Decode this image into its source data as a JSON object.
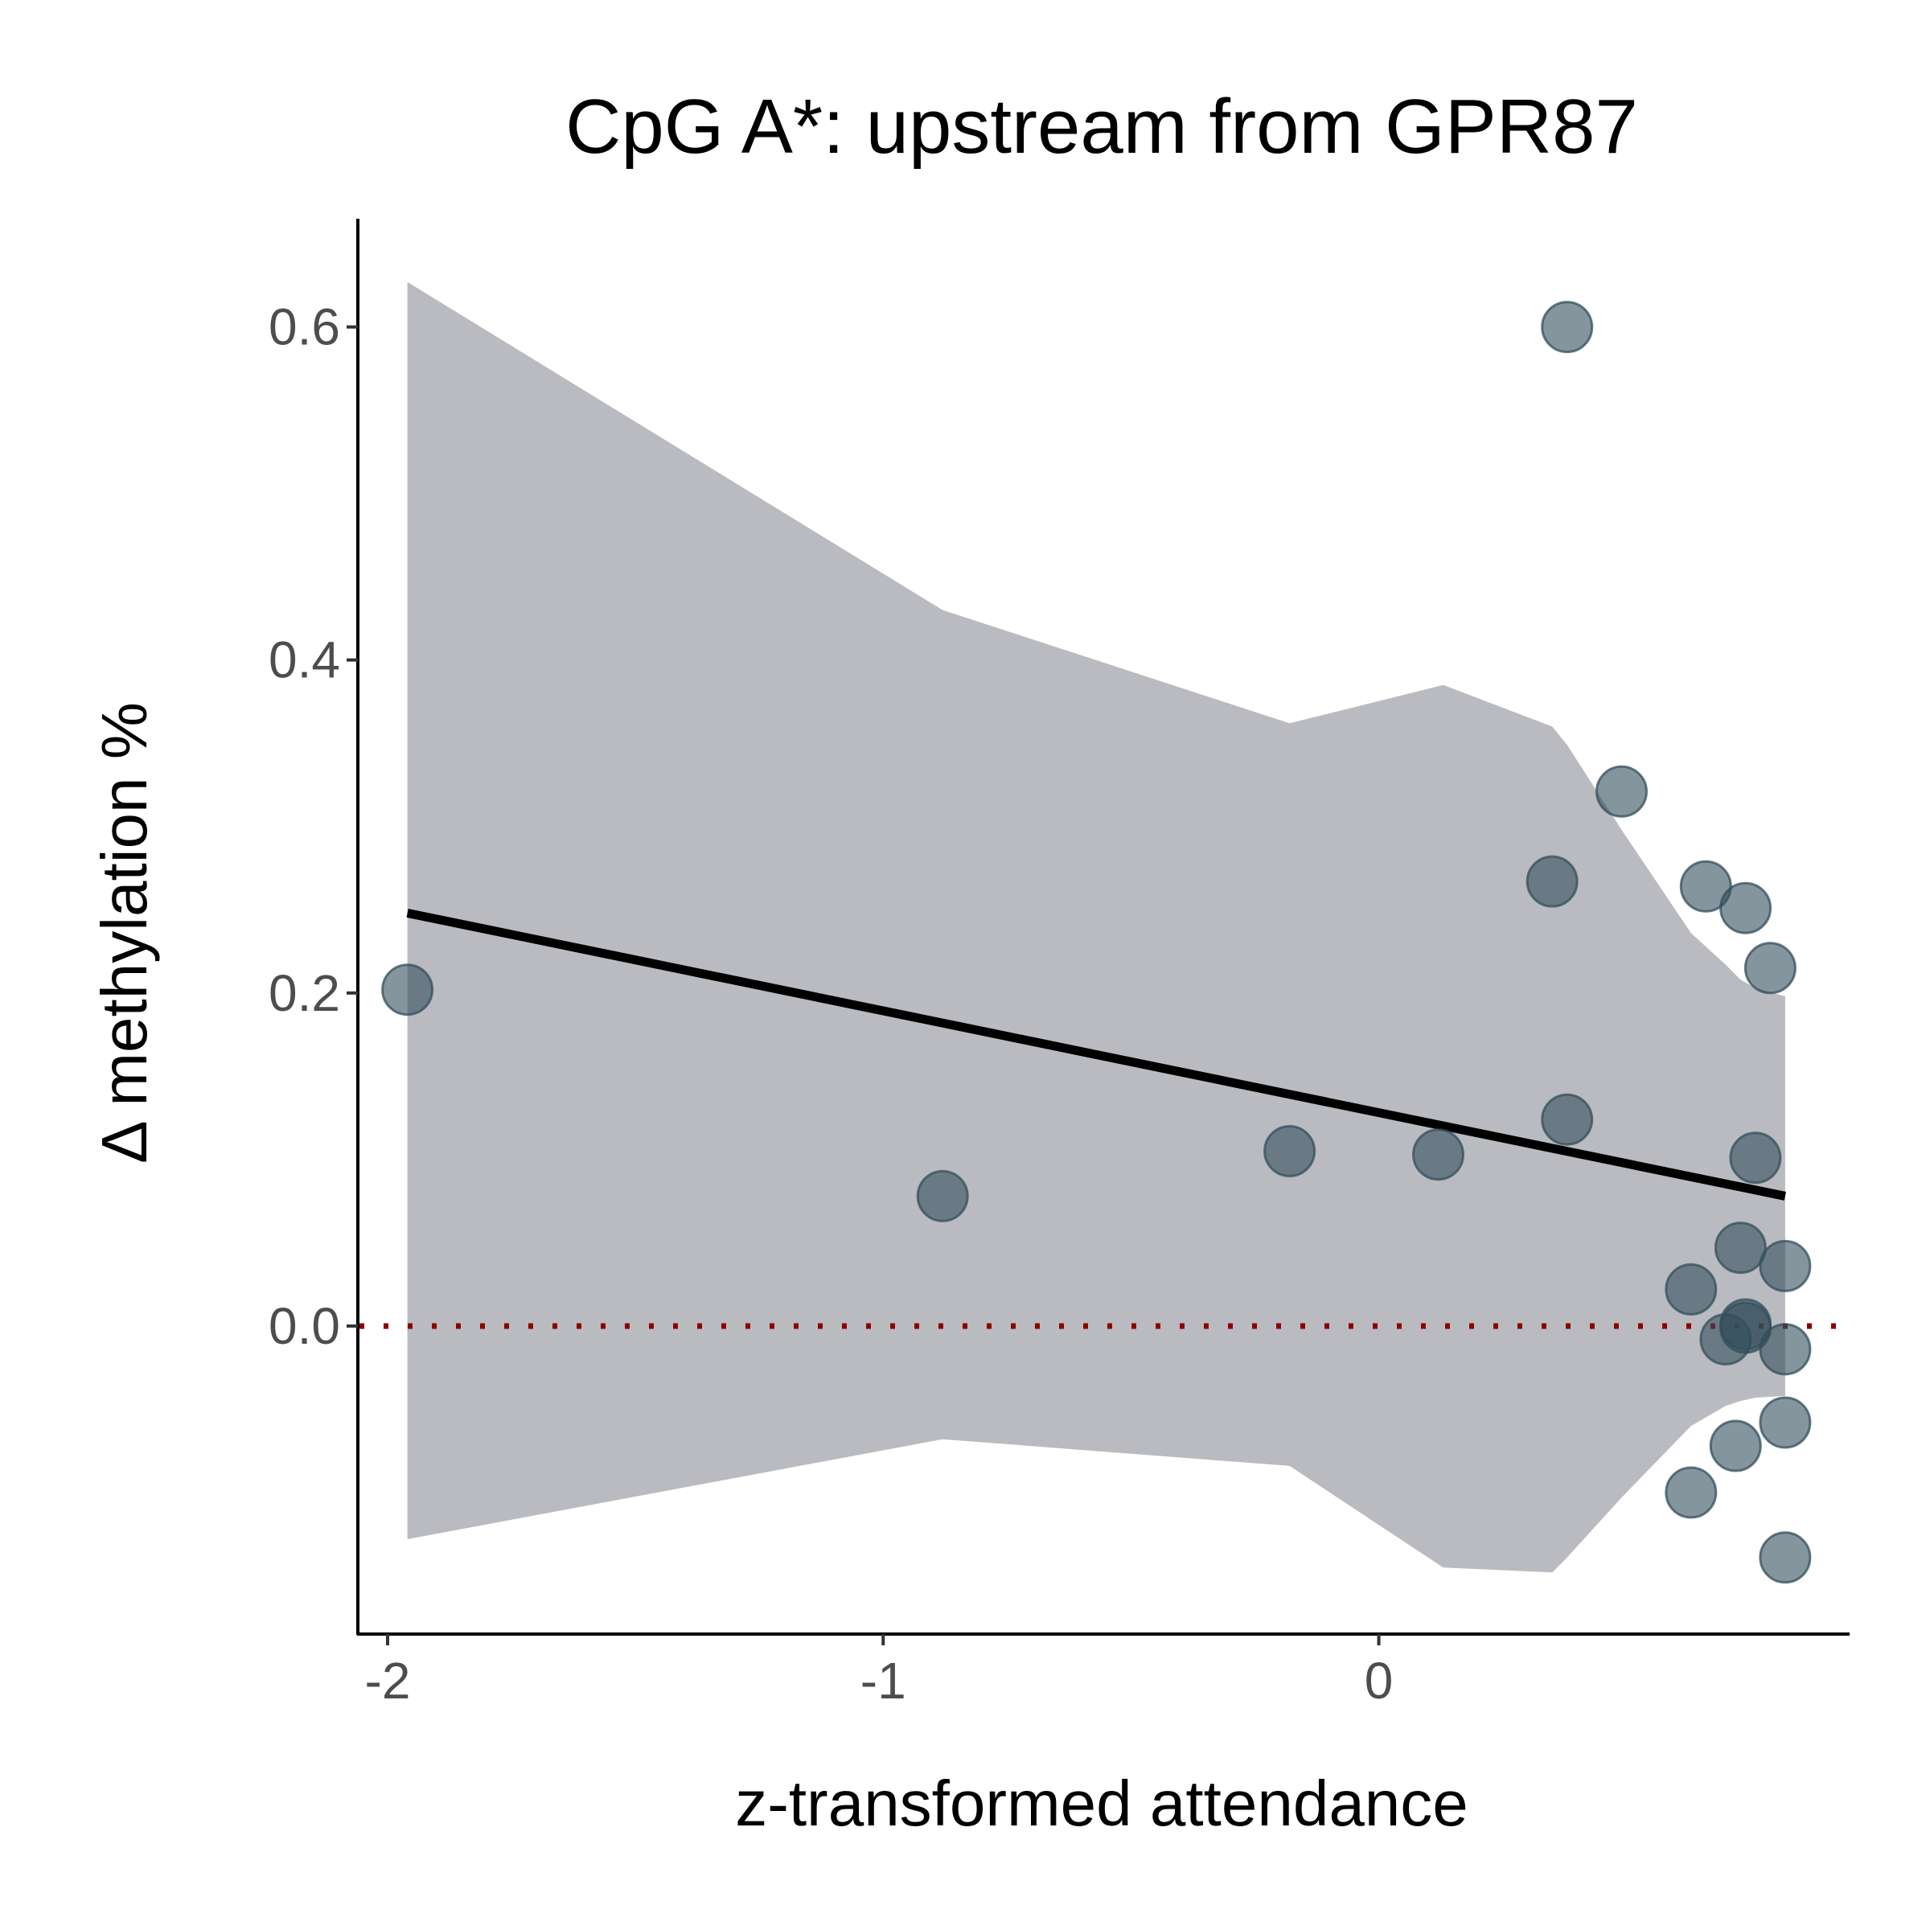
{
  "chart_data": {
    "type": "scatter",
    "title": "CpG A*: upstream from GPR87",
    "xlabel": "z-transformed attendance",
    "ylabel": "Δ methylation %",
    "xlim": [
      -2.06,
      0.95
    ],
    "ylim": [
      -0.185,
      0.665
    ],
    "x_ticks": [
      -2,
      -1,
      0
    ],
    "x_tick_labels": [
      "-2",
      "-1",
      "0"
    ],
    "y_ticks": [
      0.0,
      0.2,
      0.4,
      0.6
    ],
    "y_tick_labels": [
      "0.0",
      "0.2",
      "0.4",
      "0.6"
    ],
    "grid": false,
    "legend": "none",
    "reference_line": {
      "y": 0,
      "style": "dotted",
      "color": "#8b0000"
    },
    "regression_line": {
      "x": [
        -1.96,
        0.82
      ],
      "y": [
        0.248,
        0.078
      ],
      "color": "#000000"
    },
    "confidence_band": {
      "color": "#a9aab0",
      "opacity": 0.8,
      "x": [
        -1.96,
        -0.88,
        -0.18,
        0.13,
        0.35,
        0.38,
        0.49,
        0.63,
        0.7,
        0.73,
        0.76,
        0.82
      ],
      "upper": [
        0.627,
        0.43,
        0.362,
        0.385,
        0.36,
        0.349,
        0.298,
        0.236,
        0.217,
        0.208,
        0.203,
        0.198
      ],
      "lower": [
        -0.128,
        -0.068,
        -0.084,
        -0.145,
        -0.148,
        -0.139,
        -0.103,
        -0.06,
        -0.048,
        -0.045,
        -0.043,
        -0.042
      ]
    },
    "points": {
      "color": "#334f5c",
      "opacity": 0.6,
      "x": [
        -1.96,
        -0.88,
        -0.18,
        0.12,
        0.35,
        0.38,
        0.38,
        0.49,
        0.63,
        0.66,
        0.7,
        0.72,
        0.73,
        0.74,
        0.74,
        0.74,
        0.76,
        0.79,
        0.82,
        0.82,
        0.82,
        0.82,
        0.63
      ],
      "y": [
        0.202,
        0.078,
        0.105,
        0.103,
        0.267,
        0.6,
        0.124,
        0.321,
        0.022,
        0.264,
        -0.008,
        -0.072,
        0.047,
        0.251,
        0.001,
        -0.001,
        0.101,
        0.215,
        0.036,
        -0.014,
        -0.058,
        -0.139,
        -0.1
      ]
    }
  }
}
